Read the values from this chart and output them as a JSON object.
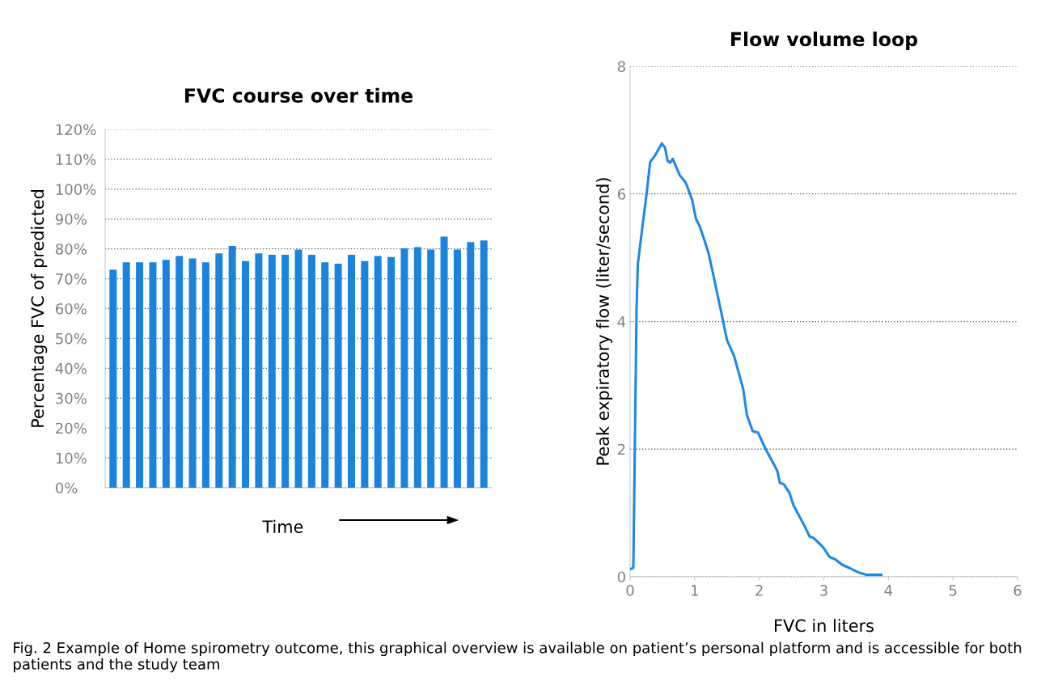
{
  "chart_data": [
    {
      "type": "bar",
      "title": "FVC course over time",
      "xlabel": "Time",
      "ylabel": "Percentage FVC of predicted",
      "categories": [
        null,
        null,
        null,
        null,
        null,
        null,
        null,
        null,
        null,
        null,
        null,
        null,
        null,
        null,
        null,
        null,
        null,
        null,
        null,
        null,
        null,
        null,
        null,
        null,
        null,
        null,
        null,
        null,
        null
      ],
      "values": [
        73,
        75.5,
        75.5,
        75.5,
        76.3,
        77.6,
        76.8,
        75.5,
        78.5,
        81,
        75.9,
        78.5,
        78,
        78,
        79.8,
        78,
        75.5,
        75,
        78,
        75.9,
        77.6,
        77.3,
        80.2,
        80.6,
        79.8,
        84.1,
        79.8,
        82.3,
        82.8
      ],
      "color": "#1a84dc",
      "ylim": [
        0,
        120
      ],
      "yticks": [
        {
          "value": 0,
          "label": "0%"
        },
        {
          "value": 10,
          "label": "10%"
        },
        {
          "value": 20,
          "label": "20%"
        },
        {
          "value": 30,
          "label": "30%"
        },
        {
          "value": 40,
          "label": "40%"
        },
        {
          "value": 50,
          "label": "50%"
        },
        {
          "value": 60,
          "label": "60%"
        },
        {
          "value": 70,
          "label": "70%"
        },
        {
          "value": 80,
          "label": "80%"
        },
        {
          "value": 90,
          "label": "90%"
        },
        {
          "value": 100,
          "label": "100%"
        },
        {
          "value": 110,
          "label": "110%"
        },
        {
          "value": 120,
          "label": "120%"
        }
      ],
      "grid": "y",
      "legend": false,
      "annotations": [
        "Fig. 2 Example of Home spirometry outcome, this graphical overview is available on patient’s personal platform and is accessible for both patients and the study team"
      ]
    },
    {
      "type": "line",
      "title": "Flow volume loop",
      "xlabel": "FVC in liters",
      "ylabel": "Peak expiratory flow (liter/second)",
      "x": [
        0,
        0.05,
        0.1,
        0.12,
        0.18,
        0.26,
        0.31,
        0.39,
        0.49,
        0.54,
        0.58,
        0.62,
        0.66,
        0.77,
        0.86,
        0.96,
        1.02,
        1.08,
        1.21,
        1.27,
        1.44,
        1.5,
        1.61,
        1.75,
        1.81,
        1.9,
        1.98,
        2.1,
        2.28,
        2.32,
        2.38,
        2.47,
        2.53,
        2.7,
        2.78,
        2.84,
        2.99,
        3.09,
        3.18,
        3.28,
        3.41,
        3.53,
        3.66,
        3.89
      ],
      "values": [
        0.12,
        0.14,
        4.2,
        4.9,
        5.4,
        6.04,
        6.5,
        6.61,
        6.79,
        6.73,
        6.52,
        6.49,
        6.55,
        6.29,
        6.18,
        5.91,
        5.61,
        5.49,
        5.09,
        4.82,
        4.01,
        3.71,
        3.46,
        2.95,
        2.53,
        2.28,
        2.26,
        2.0,
        1.66,
        1.47,
        1.45,
        1.31,
        1.12,
        0.8,
        0.63,
        0.61,
        0.46,
        0.31,
        0.27,
        0.19,
        0.13,
        0.07,
        0.03,
        0.03
      ],
      "color": "#1e88e5",
      "xlim": [
        0,
        6
      ],
      "xticks": [
        0,
        1,
        2,
        3,
        4,
        5,
        6
      ],
      "ylim": [
        0,
        8
      ],
      "yticks": [
        0,
        2,
        4,
        6,
        8
      ],
      "grid": "y",
      "legend": false,
      "marker": "none",
      "line_style": "solid"
    }
  ]
}
